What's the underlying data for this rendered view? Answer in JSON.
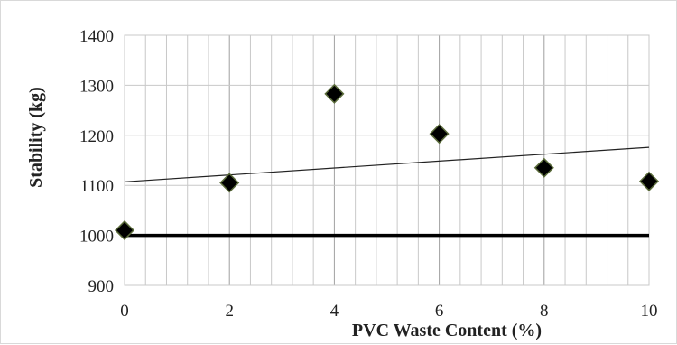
{
  "chart_data": {
    "type": "scatter",
    "title": "",
    "xlabel": "PVC Waste Content (%)",
    "ylabel": "Stability (kg)",
    "xlim": [
      0,
      10
    ],
    "ylim": [
      900,
      1400
    ],
    "x_ticks": [
      0,
      2,
      4,
      6,
      8,
      10
    ],
    "y_ticks": [
      900,
      1000,
      1100,
      1200,
      1300,
      1400
    ],
    "minor_x_gridlines_per_major": 4,
    "grid": true,
    "legend": "none",
    "series": [
      {
        "type": "scatter",
        "marker": "diamond",
        "x": [
          0,
          2,
          4,
          6,
          8,
          10
        ],
        "y": [
          1010,
          1105,
          1283,
          1203,
          1135,
          1108
        ]
      }
    ],
    "trendline": {
      "x": [
        0,
        10
      ],
      "y": [
        1107,
        1176
      ]
    },
    "reference_line": {
      "y": 1000
    }
  },
  "colors": {
    "marker_fill": "#000000",
    "marker_stroke": "#5a6b3a",
    "gridline": "#c8c8c8",
    "major_x_gridline": "#a0a0a0",
    "trendline": "#222222",
    "reference_line": "#000000"
  }
}
